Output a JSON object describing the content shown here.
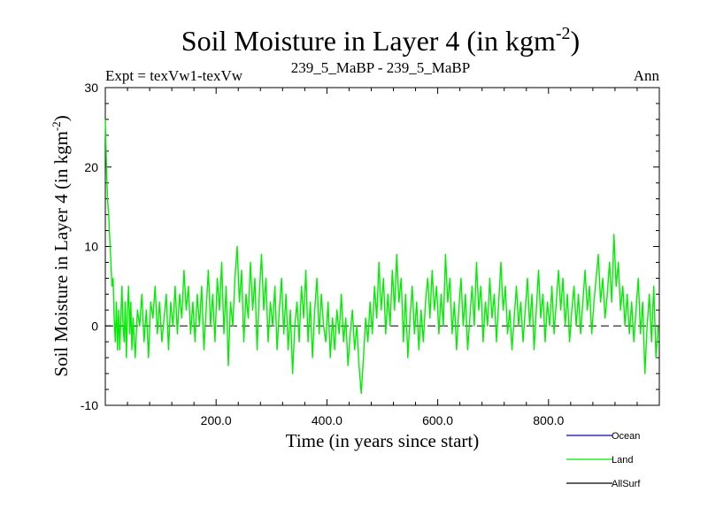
{
  "chart_data": {
    "type": "line",
    "title": {
      "main": "Soil Moisture in Layer 4 (in kgm",
      "sup": "-2",
      "close": ")"
    },
    "subtitle_left": "Expt = texVw1-texVw",
    "subtitle_center": "239_5_MaBP - 239_5_MaBP",
    "subtitle_right": "Ann",
    "xlabel": "Time (in years since start)",
    "ylabel": {
      "main": "Soil Moisture in Layer 4 (in kgm",
      "sup": "-2",
      "close": ")"
    },
    "xlim": [
      0,
      1000
    ],
    "ylim": [
      -10,
      30
    ],
    "x_ticks": [
      {
        "value": 200,
        "label": "200.0"
      },
      {
        "value": 400,
        "label": "400.0"
      },
      {
        "value": 600,
        "label": "600.0"
      },
      {
        "value": 800,
        "label": "800.0"
      }
    ],
    "y_ticks": [
      {
        "value": -10,
        "label": "-10"
      },
      {
        "value": 0,
        "label": "0"
      },
      {
        "value": 10,
        "label": "10"
      },
      {
        "value": 20,
        "label": "20"
      },
      {
        "value": 30,
        "label": "30"
      }
    ],
    "zero_line": {
      "value": 0,
      "style": "dashed"
    },
    "legend": [
      {
        "name": "Ocean",
        "color": "#0000ff"
      },
      {
        "name": "Land",
        "color": "#00ee00"
      },
      {
        "name": "AllSurf",
        "color": "#000000"
      }
    ],
    "series": [
      {
        "name": "Land",
        "color": "#00ee00",
        "points": [
          [
            0,
            26
          ],
          [
            2,
            20
          ],
          [
            4,
            16
          ],
          [
            6,
            14
          ],
          [
            8,
            11
          ],
          [
            10,
            8
          ],
          [
            12,
            5
          ],
          [
            14,
            6
          ],
          [
            16,
            1
          ],
          [
            18,
            -2
          ],
          [
            20,
            3
          ],
          [
            22,
            -3
          ],
          [
            24,
            2
          ],
          [
            26,
            -3
          ],
          [
            28,
            1
          ],
          [
            30,
            5
          ],
          [
            32,
            0
          ],
          [
            34,
            -2
          ],
          [
            36,
            3
          ],
          [
            38,
            -4
          ],
          [
            40,
            2
          ],
          [
            42,
            5
          ],
          [
            44,
            -1
          ],
          [
            46,
            3
          ],
          [
            48,
            -3
          ],
          [
            50,
            1
          ],
          [
            54,
            -4
          ],
          [
            58,
            2
          ],
          [
            62,
            0
          ],
          [
            66,
            4
          ],
          [
            70,
            -2
          ],
          [
            74,
            2
          ],
          [
            78,
            -4
          ],
          [
            82,
            3
          ],
          [
            86,
            1
          ],
          [
            90,
            5
          ],
          [
            94,
            -1
          ],
          [
            98,
            3
          ],
          [
            102,
            -2
          ],
          [
            106,
            1
          ],
          [
            110,
            4
          ],
          [
            114,
            -3
          ],
          [
            118,
            3
          ],
          [
            122,
            0
          ],
          [
            126,
            5
          ],
          [
            130,
            -1
          ],
          [
            134,
            4
          ],
          [
            138,
            1
          ],
          [
            142,
            7
          ],
          [
            146,
            2
          ],
          [
            150,
            5
          ],
          [
            154,
            -1
          ],
          [
            158,
            3
          ],
          [
            162,
            -2
          ],
          [
            166,
            4
          ],
          [
            170,
            0
          ],
          [
            174,
            5
          ],
          [
            178,
            -3
          ],
          [
            182,
            2
          ],
          [
            186,
            7
          ],
          [
            190,
            0
          ],
          [
            194,
            4
          ],
          [
            198,
            -2
          ],
          [
            202,
            6
          ],
          [
            206,
            2
          ],
          [
            210,
            8
          ],
          [
            214,
            -1
          ],
          [
            218,
            5
          ],
          [
            222,
            -5
          ],
          [
            226,
            3
          ],
          [
            230,
            0
          ],
          [
            234,
            6
          ],
          [
            238,
            10
          ],
          [
            242,
            3
          ],
          [
            246,
            7
          ],
          [
            250,
            -2
          ],
          [
            254,
            4
          ],
          [
            258,
            1
          ],
          [
            262,
            8
          ],
          [
            266,
            2
          ],
          [
            270,
            6
          ],
          [
            274,
            -3
          ],
          [
            278,
            4
          ],
          [
            282,
            9
          ],
          [
            286,
            2
          ],
          [
            290,
            6
          ],
          [
            294,
            -2
          ],
          [
            298,
            3
          ],
          [
            302,
            0
          ],
          [
            306,
            5
          ],
          [
            310,
            -3
          ],
          [
            314,
            2
          ],
          [
            318,
            6
          ],
          [
            322,
            -1
          ],
          [
            326,
            4
          ],
          [
            330,
            -3
          ],
          [
            334,
            2
          ],
          [
            338,
            -6
          ],
          [
            342,
            0
          ],
          [
            346,
            3
          ],
          [
            350,
            -2
          ],
          [
            354,
            5
          ],
          [
            358,
            1
          ],
          [
            362,
            7
          ],
          [
            366,
            -2
          ],
          [
            370,
            3
          ],
          [
            374,
            -4
          ],
          [
            378,
            2
          ],
          [
            382,
            6
          ],
          [
            386,
            -1
          ],
          [
            390,
            4
          ],
          [
            394,
            0
          ],
          [
            398,
            -2
          ],
          [
            402,
            3
          ],
          [
            406,
            -4
          ],
          [
            410,
            1
          ],
          [
            414,
            -3
          ],
          [
            418,
            2
          ],
          [
            422,
            -1
          ],
          [
            426,
            4
          ],
          [
            430,
            -2
          ],
          [
            434,
            1
          ],
          [
            438,
            -5
          ],
          [
            442,
            -1
          ],
          [
            446,
            2
          ],
          [
            450,
            -3
          ],
          [
            454,
            0
          ],
          [
            458,
            -5
          ],
          [
            462,
            -8.5
          ],
          [
            466,
            -4
          ],
          [
            470,
            1
          ],
          [
            474,
            -2
          ],
          [
            478,
            3
          ],
          [
            482,
            -1
          ],
          [
            486,
            5
          ],
          [
            490,
            1
          ],
          [
            494,
            8
          ],
          [
            498,
            2
          ],
          [
            502,
            6
          ],
          [
            506,
            -1
          ],
          [
            510,
            4
          ],
          [
            514,
            0
          ],
          [
            518,
            7
          ],
          [
            522,
            2
          ],
          [
            526,
            9
          ],
          [
            530,
            3
          ],
          [
            534,
            6
          ],
          [
            538,
            -2
          ],
          [
            542,
            4
          ],
          [
            546,
            -4
          ],
          [
            550,
            1
          ],
          [
            554,
            5
          ],
          [
            558,
            -1
          ],
          [
            562,
            3
          ],
          [
            566,
            -3
          ],
          [
            570,
            2
          ],
          [
            574,
            -2
          ],
          [
            578,
            3
          ],
          [
            582,
            6
          ],
          [
            586,
            1
          ],
          [
            590,
            7
          ],
          [
            594,
            2
          ],
          [
            598,
            5
          ],
          [
            602,
            -1
          ],
          [
            606,
            4
          ],
          [
            610,
            0
          ],
          [
            614,
            9
          ],
          [
            618,
            3
          ],
          [
            622,
            6
          ],
          [
            626,
            -1
          ],
          [
            630,
            3
          ],
          [
            634,
            -3
          ],
          [
            638,
            2
          ],
          [
            642,
            6
          ],
          [
            646,
            0
          ],
          [
            650,
            4
          ],
          [
            654,
            -3
          ],
          [
            658,
            1
          ],
          [
            662,
            5
          ],
          [
            666,
            0
          ],
          [
            670,
            8
          ],
          [
            674,
            2
          ],
          [
            678,
            5
          ],
          [
            682,
            -2
          ],
          [
            686,
            3
          ],
          [
            690,
            0
          ],
          [
            694,
            6
          ],
          [
            698,
            1
          ],
          [
            702,
            4
          ],
          [
            706,
            -2
          ],
          [
            710,
            3
          ],
          [
            714,
            8
          ],
          [
            718,
            2
          ],
          [
            722,
            5
          ],
          [
            726,
            -1
          ],
          [
            730,
            2
          ],
          [
            734,
            -3
          ],
          [
            738,
            1
          ],
          [
            742,
            5
          ],
          [
            746,
            0
          ],
          [
            750,
            3
          ],
          [
            754,
            -2
          ],
          [
            758,
            2
          ],
          [
            762,
            6
          ],
          [
            766,
            0
          ],
          [
            770,
            4
          ],
          [
            774,
            -3
          ],
          [
            778,
            2
          ],
          [
            782,
            7
          ],
          [
            786,
            1
          ],
          [
            790,
            4
          ],
          [
            794,
            -2
          ],
          [
            798,
            3
          ],
          [
            802,
            0
          ],
          [
            806,
            5
          ],
          [
            810,
            -1
          ],
          [
            814,
            3
          ],
          [
            818,
            7
          ],
          [
            822,
            2
          ],
          [
            826,
            6
          ],
          [
            830,
            0
          ],
          [
            834,
            4
          ],
          [
            838,
            -2
          ],
          [
            842,
            2
          ],
          [
            846,
            5
          ],
          [
            850,
            0
          ],
          [
            854,
            4
          ],
          [
            858,
            -1
          ],
          [
            862,
            3
          ],
          [
            866,
            7
          ],
          [
            870,
            2
          ],
          [
            874,
            5
          ],
          [
            878,
            -1
          ],
          [
            882,
            3
          ],
          [
            886,
            6
          ],
          [
            890,
            9
          ],
          [
            894,
            3
          ],
          [
            898,
            6
          ],
          [
            902,
            1
          ],
          [
            906,
            4
          ],
          [
            910,
            8
          ],
          [
            914,
            3
          ],
          [
            918,
            11.5
          ],
          [
            922,
            5
          ],
          [
            926,
            8
          ],
          [
            930,
            2
          ],
          [
            934,
            5
          ],
          [
            938,
            0
          ],
          [
            942,
            4
          ],
          [
            946,
            -1
          ],
          [
            950,
            3
          ],
          [
            954,
            -2
          ],
          [
            958,
            2
          ],
          [
            962,
            6
          ],
          [
            966,
            -1
          ],
          [
            970,
            3
          ],
          [
            974,
            -6
          ],
          [
            978,
            0
          ],
          [
            982,
            4
          ],
          [
            986,
            -2
          ],
          [
            990,
            5
          ],
          [
            994,
            -4
          ],
          [
            998,
            0
          ]
        ]
      }
    ]
  }
}
